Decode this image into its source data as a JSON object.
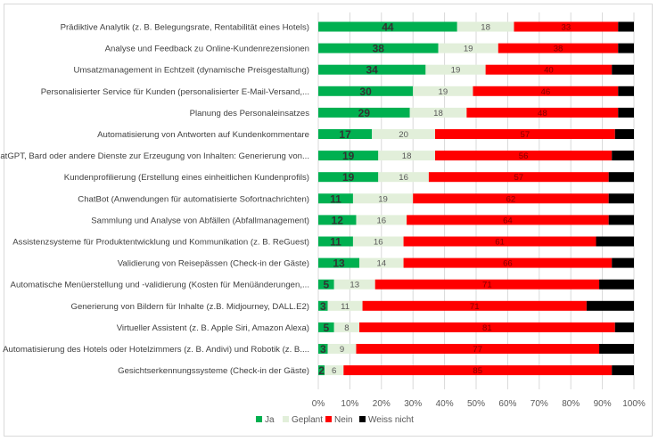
{
  "chart_data": {
    "type": "bar",
    "orientation": "horizontal-stacked-percent",
    "categories": [
      "Prädiktive Analytik (z. B. Belegungsrate, Rentabilität eines Hotels)",
      "Analyse und Feedback zu Online-Kundenrezensionen",
      "Umsatzmanagement in Echtzeit (dynamische Preisgestaltung)",
      "Personalisierter Service für Kunden (personalisierter E-Mail-Versand,...",
      "Planung des Personaleinsatzes",
      "Automatisierung von Antworten auf Kundenkommentare",
      "ChatGPT, Bard oder andere Dienste zur Erzeugung von Inhalten: Generierung von...",
      "Kundenprofilierung (Erstellung eines einheitlichen Kundenprofils)",
      "ChatBot (Anwendungen für automatisierte Sofortnachrichten)",
      "Sammlung und Analyse von Abfällen (Abfallmanagement)",
      "Assistenzsysteme für Produktentwicklung und Kommunikation (z. B. ReGuest)",
      "Validierung von Reisepässen (Check-in der Gäste)",
      "Automatische Menüerstellung und -validierung (Kosten für Menüänderungen,...",
      "Generierung von Bildern für Inhalte (z.B. Midjourney, DALL.E2)",
      "Virtueller Assistent (z. B. Apple Siri, Amazon Alexa)",
      "Automatisierung des Hotels oder Hotelzimmers (z. B. Andivi) und Robotik (z. B....",
      "Gesichtserkennungssysteme (Check-in der Gäste)"
    ],
    "series": [
      {
        "name": "Ja",
        "color": "#00b050",
        "values": [
          44,
          38,
          34,
          30,
          29,
          17,
          19,
          19,
          11,
          12,
          11,
          13,
          5,
          3,
          5,
          3,
          2
        ]
      },
      {
        "name": "Geplant",
        "color": "#e2efda",
        "values": [
          18,
          19,
          19,
          19,
          18,
          20,
          18,
          16,
          19,
          16,
          16,
          14,
          13,
          11,
          8,
          9,
          6
        ]
      },
      {
        "name": "Nein",
        "color": "#ff0000",
        "values": [
          33,
          38,
          40,
          46,
          48,
          57,
          56,
          57,
          62,
          64,
          61,
          66,
          71,
          71,
          81,
          77,
          85
        ]
      },
      {
        "name": "Weiss nicht",
        "color": "#000000",
        "values": [
          5,
          5,
          7,
          5,
          5,
          6,
          7,
          8,
          8,
          8,
          12,
          7,
          11,
          15,
          6,
          11,
          7
        ]
      }
    ],
    "xticks": [
      "0%",
      "10%",
      "20%",
      "30%",
      "40%",
      "50%",
      "60%",
      "70%",
      "80%",
      "90%",
      "100%"
    ],
    "xlim": [
      0,
      100
    ],
    "grid": true,
    "legend_position": "bottom"
  }
}
